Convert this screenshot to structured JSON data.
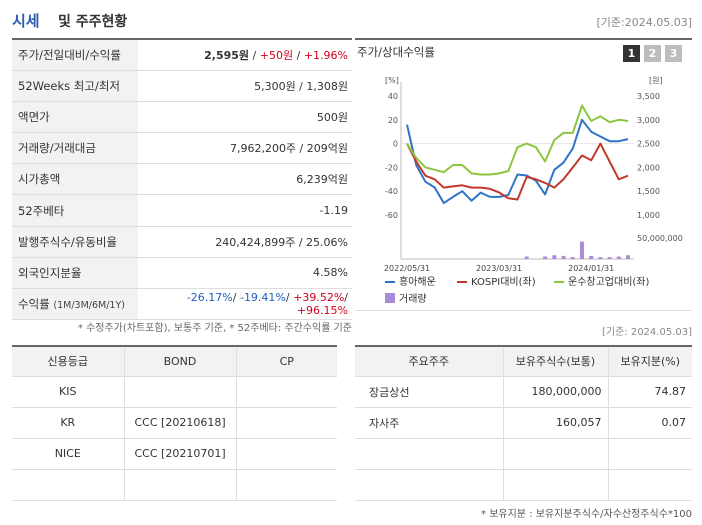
{
  "header": {
    "title_main": "시세",
    "title_rest": "및 주주현황",
    "date": "[기준:2024.05.03]"
  },
  "stats": {
    "price_label": "주가/전일대비/수익률",
    "price": "2,595원",
    "change": "+50원",
    "change_pct": "+1.96%",
    "w52_label": "52Weeks 최고/최저",
    "w52": "5,300원 / 1,308원",
    "face_label": "액면가",
    "face": "500원",
    "volume_label": "거래량/거래대금",
    "volume": "7,962,200주 / 209억원",
    "mcap_label": "시가총액",
    "mcap": "6,239억원",
    "beta_label": "52주베타",
    "beta": "-1.19",
    "shares_label": "발행주식수/유동비율",
    "shares": "240,424,899주 / 25.06%",
    "foreign_label": "외국인지분율",
    "foreign": "4.58%",
    "ret_label": "수익률",
    "ret_periods": "(1M/3M/6M/1Y)",
    "ret_1m": "-26.17%",
    "ret_3m": "-19.41%",
    "ret_6m": "+39.52%",
    "ret_1y": "+96.15%",
    "sep": "/"
  },
  "notes": "* 수정주가(차트포함), 보통주 기준, * 52주베타: 주간수익률 기준",
  "chart_panel": {
    "title": "주가/상대수익률",
    "tabs": [
      "1",
      "2",
      "3"
    ]
  },
  "colors": {
    "stock": "#2f73c9",
    "kospi": "#c0392b",
    "sector": "#8cc63f",
    "volume": "#a98bd8"
  },
  "chart_data": {
    "type": "line",
    "x": [
      "2022/05/31",
      "2022/06/30",
      "2022/07/31",
      "2022/08/31",
      "2022/09/30",
      "2022/10/31",
      "2022/11/30",
      "2022/12/31",
      "2023/01/31",
      "2023/02/28",
      "2023/03/31",
      "2023/04/30",
      "2023/05/31",
      "2023/06/30",
      "2023/07/31",
      "2023/08/31",
      "2023/09/30",
      "2023/10/31",
      "2023/11/30",
      "2023/12/31",
      "2024/01/31",
      "2024/02/29",
      "2024/03/31",
      "2024/04/30",
      "2024/05/03"
    ],
    "x_ticks": [
      "2022/05/31",
      "2023/03/31",
      "2024/01/31"
    ],
    "left_unit": "[%]",
    "right_unit": "[원]",
    "left_ticks": [
      "40",
      "20",
      "0",
      "-20",
      "-40",
      "-60"
    ],
    "right_ticks": [
      "3,500",
      "3,000",
      "2,500",
      "2,000",
      "1,500",
      "1,000"
    ],
    "vol_tick": "50,000,000",
    "ylim_left": [
      -60,
      40
    ],
    "ylim_right": [
      1000,
      3500
    ],
    "series": [
      {
        "name": "흥아해운",
        "axis": "right",
        "values": [
          2900,
          2050,
          1700,
          1580,
          1250,
          1380,
          1500,
          1300,
          1470,
          1380,
          1380,
          1420,
          1850,
          1830,
          1720,
          1430,
          1950,
          2100,
          2400,
          3000,
          2750,
          2650,
          2550,
          2550,
          2595
        ]
      },
      {
        "name": "KOSPI대비(좌)",
        "axis": "left",
        "values": [
          0,
          -15,
          -27,
          -30,
          -37,
          -36,
          -35,
          -37,
          -37,
          -38,
          -41,
          -46,
          -47,
          -28,
          -30,
          -33,
          -37,
          -30,
          -20,
          -10,
          -14,
          0,
          -15,
          -30,
          -27
        ]
      },
      {
        "name": "운수창고업대비(좌)",
        "axis": "left",
        "values": [
          0,
          -12,
          -20,
          -22,
          -24,
          -18,
          -18,
          -25,
          -26,
          -26,
          -25,
          -23,
          -3,
          0,
          -3,
          -15,
          3,
          9,
          9,
          32,
          19,
          23,
          18,
          20,
          19
        ]
      }
    ],
    "volume": {
      "name": "거래량",
      "values": [
        0,
        0,
        0,
        0,
        0,
        0,
        0,
        0,
        0,
        0,
        0,
        0,
        0,
        4000000,
        0,
        4000000,
        6000000,
        5000000,
        3000000,
        28000000,
        5000000,
        3000000,
        3000000,
        4000000,
        6000000
      ]
    }
  },
  "legend": {
    "s1": "흥아해운",
    "s2": "KOSPI대비(좌)",
    "s3": "운수창고업대비(좌)",
    "vol": "거래량"
  },
  "date2": "[기준: 2024.05.03]",
  "credit": {
    "headers": [
      "신용등급",
      "BOND",
      "CP"
    ],
    "rows": [
      {
        "agency": "KIS",
        "bond": "",
        "cp": ""
      },
      {
        "agency": "KR",
        "bond": "CCC [20210618]",
        "cp": ""
      },
      {
        "agency": "NICE",
        "bond": "CCC [20210701]",
        "cp": ""
      },
      {
        "agency": "",
        "bond": "",
        "cp": ""
      }
    ]
  },
  "holders": {
    "headers": [
      "주요주주",
      "보유주식수(보통)",
      "보유지분(%)"
    ],
    "rows": [
      {
        "name": "장금상선",
        "shares": "180,000,000",
        "pct": "74.87"
      },
      {
        "name": "자사주",
        "shares": "160,057",
        "pct": "0.07"
      },
      {
        "name": "",
        "shares": "",
        "pct": ""
      },
      {
        "name": "",
        "shares": "",
        "pct": ""
      }
    ]
  },
  "holders_note": "* 보유지분 : 보유지분주식수/자수산정주식수*100"
}
